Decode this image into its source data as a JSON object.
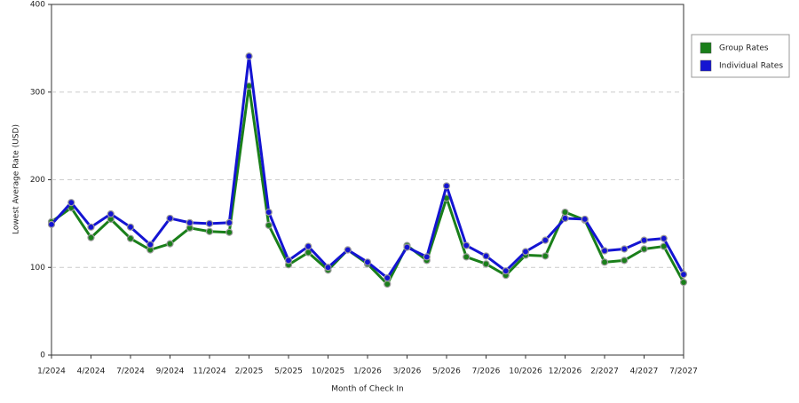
{
  "chart_data": {
    "type": "line",
    "xlabel": "Month of Check In",
    "ylabel": "Lowest Average Rate (USD)",
    "categories": [
      "1/2024",
      null,
      "4/2024",
      null,
      "7/2024",
      null,
      "9/2024",
      null,
      "11/2024",
      null,
      "2/2025",
      null,
      "5/2025",
      null,
      "10/2025",
      null,
      "1/2026",
      null,
      "3/2026",
      null,
      "5/2026",
      null,
      "7/2026",
      null,
      "10/2026",
      null,
      "12/2026",
      null,
      "2/2027",
      null,
      "4/2027",
      null,
      "7/2027"
    ],
    "series": [
      {
        "name": "Group Rates",
        "color": "#1a7f1a",
        "values": [
          152,
          168,
          134,
          155,
          133,
          120,
          127,
          145,
          141,
          140,
          307,
          148,
          103,
          117,
          97,
          120,
          104,
          81,
          125,
          108,
          179,
          112,
          104,
          91,
          114,
          113,
          163,
          154,
          106,
          108,
          121,
          124,
          83
        ]
      },
      {
        "name": "Individual Rates",
        "color": "#1414d2",
        "values": [
          149,
          174,
          146,
          161,
          146,
          126,
          156,
          151,
          150,
          151,
          341,
          163,
          108,
          124,
          100,
          120,
          106,
          88,
          123,
          112,
          193,
          125,
          113,
          96,
          118,
          131,
          156,
          155,
          119,
          121,
          131,
          133,
          92
        ]
      }
    ],
    "ylim": [
      0,
      400
    ],
    "yticks": [
      0,
      100,
      200,
      300,
      400
    ],
    "grid": true,
    "legend": "right"
  }
}
